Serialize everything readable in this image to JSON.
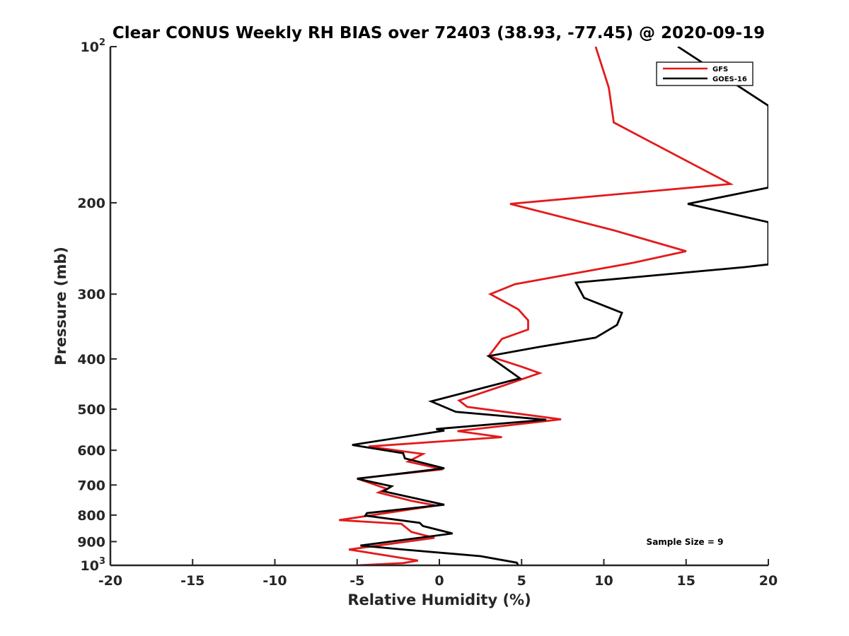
{
  "chart_data": {
    "type": "line",
    "title": "Clear CONUS Weekly RH BIAS over 72403 (38.93, -77.45) @ 2020-09-19",
    "xlabel": "Relative Humidity (%)",
    "ylabel": "Pressure (mb)",
    "xlim": [
      -20,
      20
    ],
    "ylim": [
      1000,
      100
    ],
    "y_scale": "log",
    "y_reversed": true,
    "x_ticks": [
      "-20",
      "-15",
      "-10",
      "-5",
      "0",
      "5",
      "10",
      "15",
      "20"
    ],
    "y_ticks": [
      {
        "value": 100,
        "base": "10",
        "exp": "2"
      },
      {
        "value": 200,
        "label": "200"
      },
      {
        "value": 300,
        "label": "300"
      },
      {
        "value": 400,
        "label": "400"
      },
      {
        "value": 500,
        "label": "500"
      },
      {
        "value": 600,
        "label": "600"
      },
      {
        "value": 700,
        "label": "700"
      },
      {
        "value": 800,
        "label": "800"
      },
      {
        "value": 900,
        "label": "900"
      },
      {
        "value": 1000,
        "base": "10",
        "exp": "3"
      }
    ],
    "grid": false,
    "legend_position": "top-right",
    "series": [
      {
        "name": "GFS",
        "color": "#e31a1c",
        "points": [
          [
            9.5,
            100
          ],
          [
            10.3,
            120
          ],
          [
            10.6,
            140
          ],
          [
            17.7,
            184
          ],
          [
            4.3,
            201
          ],
          [
            10.6,
            226
          ],
          [
            15.0,
            248
          ],
          [
            11.8,
            261
          ],
          [
            4.6,
            287
          ],
          [
            3.1,
            300
          ],
          [
            4.8,
            321
          ],
          [
            5.4,
            337
          ],
          [
            5.4,
            351
          ],
          [
            3.8,
            366
          ],
          [
            3.0,
            395
          ],
          [
            5.0,
            414
          ],
          [
            6.1,
            426
          ],
          [
            4.1,
            448
          ],
          [
            1.2,
            481
          ],
          [
            1.7,
            495
          ],
          [
            7.4,
            523
          ],
          [
            1.1,
            551
          ],
          [
            3.8,
            566
          ],
          [
            -4.3,
            590
          ],
          [
            -1.7,
            606
          ],
          [
            -1.0,
            610
          ],
          [
            -1.9,
            631
          ],
          [
            0.2,
            653
          ],
          [
            -5.0,
            680
          ],
          [
            -3.2,
            712
          ],
          [
            -3.7,
            724
          ],
          [
            -1.7,
            751
          ],
          [
            -0.2,
            767
          ],
          [
            -6.1,
            818
          ],
          [
            -2.3,
            832
          ],
          [
            -1.7,
            862
          ],
          [
            -0.3,
            885
          ],
          [
            -5.5,
            932
          ],
          [
            -1.3,
            979
          ],
          [
            -2.2,
            990
          ],
          [
            -4.9,
            1000
          ]
        ]
      },
      {
        "name": "GOES-16",
        "color": "#000000",
        "points": [
          [
            14.5,
            100
          ],
          [
            20.0,
            130
          ],
          [
            20.0,
            187
          ],
          [
            15.1,
            201
          ],
          [
            20.0,
            218
          ],
          [
            20.0,
            263
          ],
          [
            18.6,
            266
          ],
          [
            8.3,
            285
          ],
          [
            8.8,
            305
          ],
          [
            11.1,
            326
          ],
          [
            10.8,
            344
          ],
          [
            9.5,
            364
          ],
          [
            5.9,
            380
          ],
          [
            3.0,
            395
          ],
          [
            4.9,
            436
          ],
          [
            -0.5,
            483
          ],
          [
            1.0,
            506
          ],
          [
            6.5,
            524
          ],
          [
            -0.2,
            546
          ],
          [
            0.3,
            550
          ],
          [
            -5.3,
            586
          ],
          [
            -2.2,
            608
          ],
          [
            -2.1,
            622
          ],
          [
            0.3,
            650
          ],
          [
            -5.0,
            681
          ],
          [
            -2.9,
            704
          ],
          [
            -3.4,
            720
          ],
          [
            0.3,
            764
          ],
          [
            -4.4,
            793
          ],
          [
            -4.5,
            802
          ],
          [
            -1.2,
            828
          ],
          [
            -1.0,
            840
          ],
          [
            0.8,
            868
          ],
          [
            -4.8,
            916
          ],
          [
            -2.2,
            932
          ],
          [
            2.5,
            960
          ],
          [
            4.7,
            988
          ],
          [
            4.8,
            1000
          ]
        ]
      }
    ],
    "annotations": [
      "Sample Size = 9"
    ]
  }
}
